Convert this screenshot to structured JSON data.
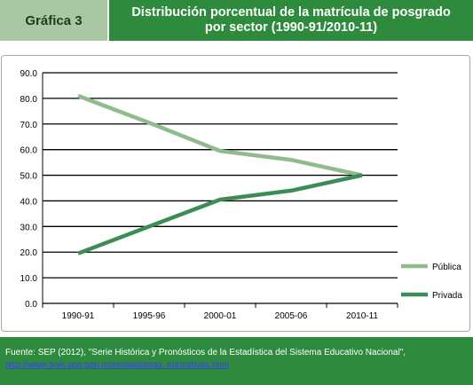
{
  "header": {
    "label": "Gráfica 3",
    "title_line1": "Distribución porcentual de la matrícula de posgrado",
    "title_line2": "por sector (1990-91/2010-11)"
  },
  "footer": {
    "source": "Fuente: SEP (2012), \"Serie Histórica y Pronósticos de la Estadística del Sistema Educativo Nacional\",",
    "url": "http://www.snie.sep.gob.mx/estadisticas_educativas.html"
  },
  "chart_data": {
    "type": "line",
    "categories": [
      "1990-91",
      "1995-96",
      "2000-01",
      "2005-06",
      "2010-11"
    ],
    "ylim": [
      0,
      90
    ],
    "yticks": [
      "0.0",
      "10.0",
      "20.0",
      "30.0",
      "40.0",
      "50.0",
      "60.0",
      "70.0",
      "80.0",
      "90.0"
    ],
    "grid": true,
    "legend_position": "bottom-right",
    "series": [
      {
        "name": "Pública",
        "values": [
          81,
          70.5,
          59.5,
          56,
          50
        ],
        "color": "#8fbc8a"
      },
      {
        "name": "Privada",
        "values": [
          19.5,
          30,
          40.5,
          44,
          50
        ],
        "color": "#3c8c55"
      }
    ]
  }
}
